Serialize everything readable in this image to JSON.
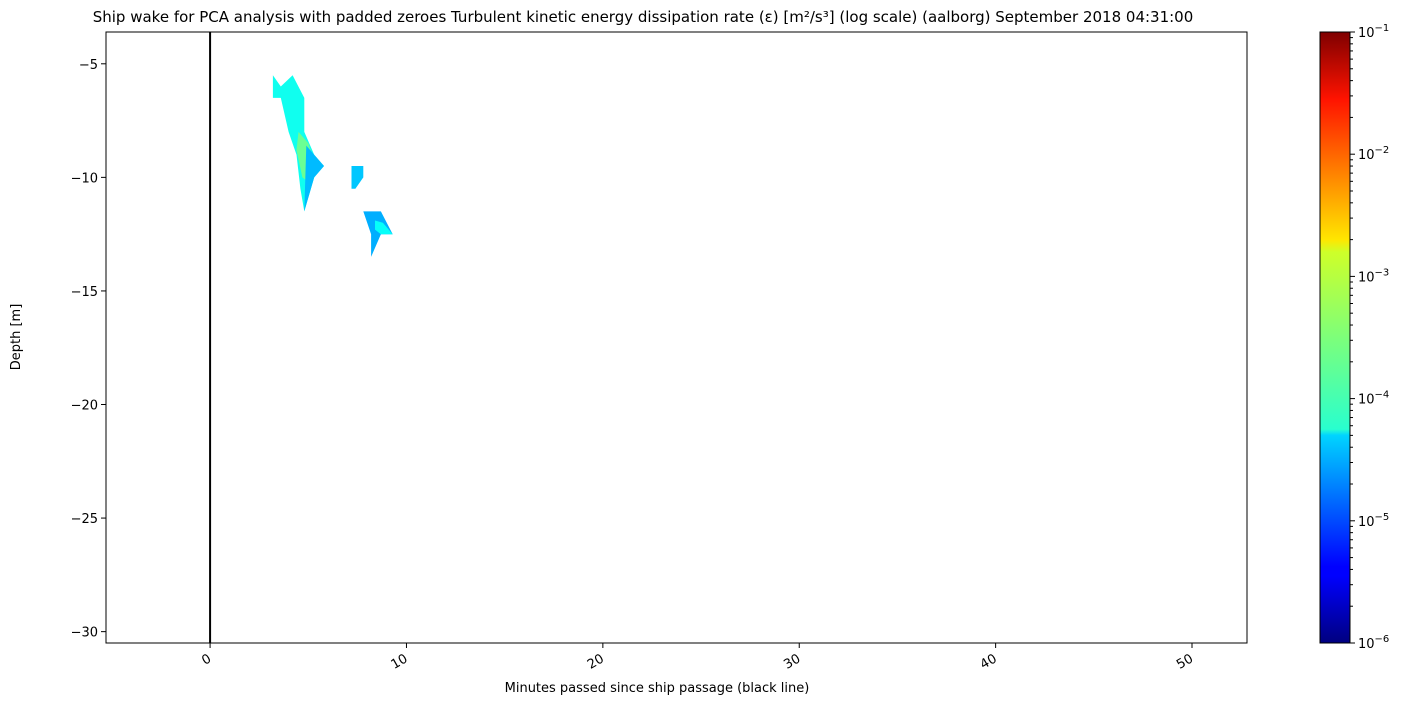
{
  "chart_data": {
    "type": "heatmap",
    "title": "Ship wake for PCA analysis with padded zeroes Turbulent kinetic energy dissipation rate (ε) [m²/s³] (log scale) (aalborg) September 2018 04:31:00",
    "xlabel": "Minutes passed since ship passage (black line)",
    "ylabel": "Depth [m]",
    "xlim": [
      -5.3,
      52.8
    ],
    "ylim": [
      -30.5,
      -3.6
    ],
    "x_ticks": [
      0,
      10,
      20,
      30,
      40,
      50
    ],
    "x_tick_labels": [
      "0",
      "10",
      "20",
      "30",
      "40",
      "50"
    ],
    "y_ticks": [
      -5,
      -10,
      -15,
      -20,
      -25,
      -30
    ],
    "y_tick_labels": [
      "−5",
      "−10",
      "−15",
      "−20",
      "−25",
      "−30"
    ],
    "reference_line": {
      "x": 0,
      "color": "#000000"
    },
    "colorbar": {
      "scale": "log",
      "colormap": "jet",
      "range": [
        1e-06,
        0.1
      ],
      "tick_values": [
        1e-06,
        1e-05,
        0.0001,
        0.001,
        0.01,
        0.1
      ],
      "tick_mantissa": "10",
      "tick_exponents": [
        "−6",
        "−5",
        "−4",
        "−3",
        "−2",
        "−1"
      ],
      "minor_ticks": true
    },
    "patches": [
      {
        "x": [
          3.2,
          3.6,
          4.2,
          4.8,
          4.8,
          5.3,
          5.8,
          5.3,
          4.8,
          4.6,
          4.4,
          4.0,
          3.6,
          3.2
        ],
        "y": [
          -5.5,
          -6.0,
          -5.5,
          -6.5,
          -8.0,
          -9.0,
          -9.5,
          -10.0,
          -11.5,
          -10.5,
          -9.0,
          -8.0,
          -6.5,
          -6.5
        ],
        "value": 9e-05
      },
      {
        "x": [
          4.5,
          5.0,
          5.4,
          5.0,
          4.7,
          4.4
        ],
        "y": [
          -8.0,
          -8.5,
          -9.5,
          -10.2,
          -10.0,
          -8.8
        ],
        "value": 0.00025
      },
      {
        "x": [
          4.9,
          5.3,
          5.8,
          5.3,
          4.8
        ],
        "y": [
          -8.6,
          -9.0,
          -9.5,
          -10.0,
          -11.5
        ],
        "value": 3.5e-05
      },
      {
        "x": [
          7.2,
          7.8,
          7.8,
          7.4,
          7.2
        ],
        "y": [
          -9.5,
          -9.5,
          -10.0,
          -10.5,
          -10.5
        ],
        "value": 4e-05
      },
      {
        "x": [
          7.8,
          8.7,
          9.3,
          8.7,
          8.2,
          8.2,
          7.8
        ],
        "y": [
          -11.5,
          -11.5,
          -12.5,
          -12.5,
          -13.5,
          -12.5,
          -11.5
        ],
        "value": 3e-05
      },
      {
        "x": [
          8.4,
          8.8,
          9.3,
          8.7,
          8.4
        ],
        "y": [
          -11.9,
          -12.0,
          -12.5,
          -12.5,
          -12.3
        ],
        "value": 8e-05
      }
    ]
  }
}
